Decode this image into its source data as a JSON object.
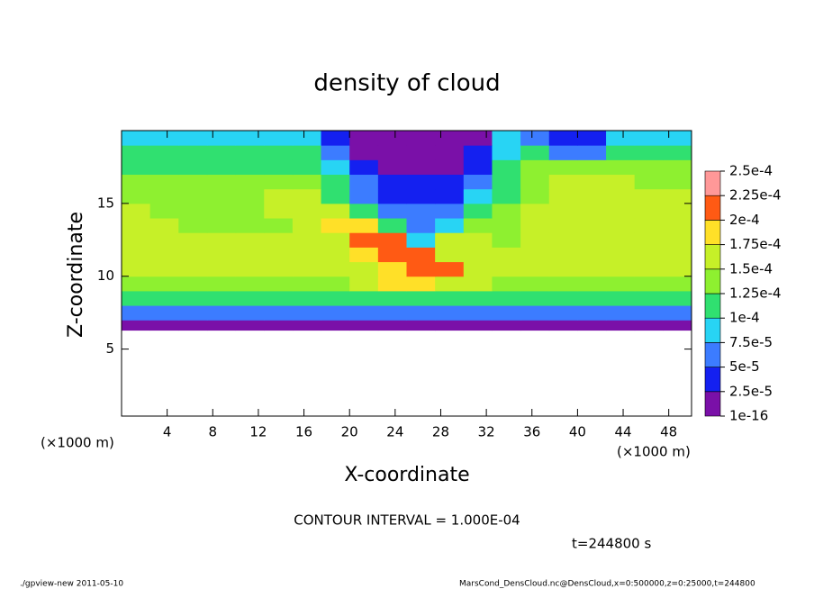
{
  "chart_data": {
    "type": "heatmap",
    "title": "density of cloud",
    "xlabel": "X-coordinate",
    "ylabel": "Z-coordinate",
    "xunit": "(×1000 m)",
    "yunit": "(×1000 m)",
    "xlim": [
      0,
      50
    ],
    "ylim": [
      0.4,
      20
    ],
    "xticks": [
      4,
      8,
      12,
      16,
      20,
      24,
      28,
      32,
      36,
      40,
      44,
      48
    ],
    "yticks": [
      5,
      10,
      15
    ],
    "xbins": [
      0,
      2.5,
      5,
      7.5,
      10,
      12.5,
      15,
      17.5,
      20,
      22.5,
      25,
      27.5,
      30,
      32.5,
      35,
      37.5,
      40,
      42.5,
      45,
      47.5,
      50
    ],
    "ybins": [
      6.3,
      7,
      8,
      9,
      10,
      11,
      12,
      13,
      14,
      15,
      16,
      17,
      18,
      19,
      20
    ],
    "values": [
      [
        1e-05,
        1e-05,
        1e-05,
        1e-05,
        1e-05,
        1e-05,
        1e-05,
        1e-05,
        1e-05,
        1e-05,
        1e-05,
        1e-05,
        1e-05,
        1e-05,
        1e-05,
        1e-05,
        1e-05,
        1e-05,
        1e-05,
        1e-05
      ],
      [
        5e-05,
        5e-05,
        5e-05,
        5e-05,
        5e-05,
        5e-05,
        5e-05,
        5e-05,
        5e-05,
        5e-05,
        5e-05,
        5e-05,
        5e-05,
        5e-05,
        5e-05,
        5e-05,
        5e-05,
        5e-05,
        5e-05,
        5e-05
      ],
      [
        0.000105,
        0.000105,
        0.000105,
        0.000105,
        0.000105,
        0.000105,
        0.000105,
        0.000105,
        0.000105,
        0.000105,
        0.000105,
        0.000105,
        0.000105,
        0.000105,
        0.000105,
        0.000105,
        0.000105,
        0.000105,
        0.000105,
        0.000105
      ],
      [
        0.00014,
        0.00014,
        0.00014,
        0.00014,
        0.00014,
        0.00014,
        0.00014,
        0.000145,
        0.00016,
        0.00018,
        0.00019,
        0.00016,
        0.00015,
        0.00014,
        0.00014,
        0.00014,
        0.00014,
        0.00014,
        0.00014,
        0.00014
      ],
      [
        0.00015,
        0.00015,
        0.00015,
        0.00015,
        0.00015,
        0.00015,
        0.00015,
        0.00015,
        0.00016,
        0.00019,
        0.00021,
        0.00021,
        0.00017,
        0.00015,
        0.00015,
        0.00015,
        0.00015,
        0.00015,
        0.00015,
        0.00015
      ],
      [
        0.00016,
        0.00015,
        0.00015,
        0.00015,
        0.00015,
        0.00015,
        0.00015,
        0.00016,
        0.00018,
        0.00021,
        0.00021,
        0.00016,
        0.00015,
        0.00015,
        0.00015,
        0.00015,
        0.00015,
        0.00015,
        0.00015,
        0.00015
      ],
      [
        0.00017,
        0.00015,
        0.00015,
        0.00015,
        0.00015,
        0.00015,
        0.00016,
        0.00017,
        0.0002,
        0.00021,
        8e-05,
        0.00015,
        0.00015,
        0.00014,
        0.00015,
        0.00015,
        0.00015,
        0.00015,
        0.00015,
        0.00015
      ],
      [
        0.00016,
        0.00015,
        0.000145,
        0.000145,
        0.000145,
        0.000145,
        0.00016,
        0.00018,
        0.00019,
        0.00012,
        6e-05,
        8e-05,
        0.00013,
        0.00014,
        0.00015,
        0.00015,
        0.00015,
        0.00015,
        0.00015,
        0.00015
      ],
      [
        0.00015,
        0.000145,
        0.000145,
        0.000145,
        0.000145,
        0.00015,
        0.00017,
        0.00016,
        0.0001,
        5e-05,
        5e-05,
        5e-05,
        0.0001,
        0.00013,
        0.00015,
        0.00015,
        0.00015,
        0.00015,
        0.00015,
        0.00015
      ],
      [
        0.00014,
        0.00014,
        0.00014,
        0.00014,
        0.00014,
        0.00015,
        0.00017,
        0.00012,
        6e-05,
        3e-05,
        3e-05,
        3e-05,
        8e-05,
        0.00012,
        0.00014,
        0.00015,
        0.00015,
        0.00015,
        0.00015,
        0.00015
      ],
      [
        0.00013,
        0.00013,
        0.00013,
        0.00013,
        0.00013,
        0.00014,
        0.00014,
        0.0001,
        5e-05,
        3e-05,
        3e-05,
        3e-05,
        6e-05,
        0.00011,
        0.00014,
        0.00015,
        0.00015,
        0.00015,
        0.00014,
        0.00014
      ],
      [
        0.00012,
        0.00012,
        0.00012,
        0.00012,
        0.00012,
        0.00012,
        0.00012,
        8e-05,
        3e-05,
        2e-05,
        2e-05,
        2e-05,
        4e-05,
        0.0001,
        0.00013,
        0.00014,
        0.00014,
        0.00014,
        0.00013,
        0.00013
      ],
      [
        0.00011,
        0.00011,
        0.00011,
        0.00011,
        0.00011,
        0.00011,
        0.0001,
        6e-05,
        2e-05,
        2e-05,
        2e-05,
        2e-05,
        3e-05,
        9e-05,
        0.0001,
        6e-05,
        6e-05,
        0.00011,
        0.00011,
        0.00011
      ],
      [
        8e-05,
        8e-05,
        8e-05,
        8e-05,
        8e-05,
        8e-05,
        8e-05,
        3e-05,
        1e-05,
        1e-05,
        1e-05,
        1e-05,
        2e-05,
        8e-05,
        5e-05,
        3e-05,
        3e-05,
        8e-05,
        8e-05,
        8e-05
      ]
    ],
    "colorbar": {
      "ticks": [
        {
          "value": 1e-16,
          "label": "1e-16"
        },
        {
          "value": 2.5e-05,
          "label": "2.5e-5"
        },
        {
          "value": 5e-05,
          "label": "5e-5"
        },
        {
          "value": 7.5e-05,
          "label": "7.5e-5"
        },
        {
          "value": 0.0001,
          "label": "1e-4"
        },
        {
          "value": 0.000125,
          "label": "1.25e-4"
        },
        {
          "value": 0.00015,
          "label": "1.5e-4"
        },
        {
          "value": 0.000175,
          "label": "1.75e-4"
        },
        {
          "value": 0.0002,
          "label": "2e-4"
        },
        {
          "value": 0.000225,
          "label": "2.25e-4"
        },
        {
          "value": 0.00025,
          "label": "2.5e-4"
        }
      ],
      "colors": [
        "#7a10a8",
        "#1420f0",
        "#3c7cff",
        "#28d4f4",
        "#30e070",
        "#8ef030",
        "#c6f028",
        "#ffe028",
        "#ff5a14",
        "#ff9898"
      ]
    },
    "annotations": [
      "CONTOUR INTERVAL = 1.000E-04",
      "t=244800 s"
    ],
    "footer_left": "./gpview-new   2011-05-10",
    "footer_right": "MarsCond_DensCloud.nc@DensCloud,x=0:500000,z=0:25000,t=244800"
  }
}
